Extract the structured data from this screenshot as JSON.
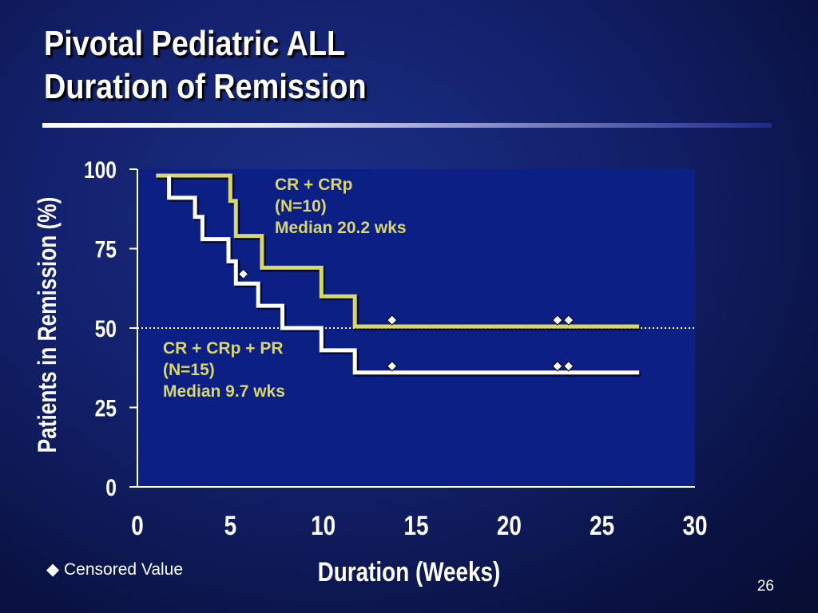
{
  "slide": {
    "title_line1": "Pivotal Pediatric ALL",
    "title_line2": "Duration of Remission",
    "legend_marker": "◆",
    "legend_label": "Censored Value",
    "page_number": "26"
  },
  "colors": {
    "plot_bg": "#0b1f84",
    "series1": "#d9d66a",
    "series2": "#ffffff",
    "text": "#ffffff",
    "annotation": "#d9d66a",
    "reference_line": "#ffffff"
  },
  "chart_data": {
    "type": "line",
    "subtype": "kaplan-meier step",
    "xlabel": "Duration (Weeks)",
    "ylabel": "Patients in Remission (%)",
    "xlim": [
      0,
      30
    ],
    "ylim": [
      0,
      100
    ],
    "x_ticks": [
      "0",
      "5",
      "10",
      "15",
      "20",
      "25",
      "30"
    ],
    "y_ticks": [
      "0",
      "25",
      "50",
      "75",
      "100"
    ],
    "grid": false,
    "reference_line_y": 50,
    "series": [
      {
        "annotation": [
          "CR + CRp",
          "(N=10)",
          "Median 20.2 wks"
        ],
        "color": "#d9d66a",
        "steps": [
          [
            1,
            98
          ],
          [
            5,
            98
          ],
          [
            5,
            90
          ],
          [
            5.3,
            90
          ],
          [
            5.3,
            79
          ],
          [
            6.7,
            79
          ],
          [
            6.7,
            69
          ],
          [
            9.9,
            69
          ],
          [
            9.9,
            60
          ],
          [
            11.7,
            60
          ],
          [
            11.7,
            50.5
          ],
          [
            27,
            50.5
          ]
        ],
        "censored": [
          [
            13.7,
            52.5
          ],
          [
            22.6,
            52.5
          ],
          [
            23.2,
            52.5
          ]
        ]
      },
      {
        "annotation": [
          "CR + CRp + PR",
          "(N=15)",
          "Median 9.7 wks"
        ],
        "color": "#ffffff",
        "steps": [
          [
            1.7,
            98
          ],
          [
            1.7,
            91
          ],
          [
            3.1,
            91
          ],
          [
            3.1,
            85
          ],
          [
            3.5,
            85
          ],
          [
            3.5,
            78
          ],
          [
            4.9,
            78
          ],
          [
            4.9,
            71
          ],
          [
            5.3,
            71
          ],
          [
            5.3,
            64
          ],
          [
            6.5,
            64
          ],
          [
            6.5,
            57
          ],
          [
            7.8,
            57
          ],
          [
            7.8,
            50
          ],
          [
            9.9,
            50
          ],
          [
            9.9,
            43
          ],
          [
            11.7,
            43
          ],
          [
            11.7,
            36
          ],
          [
            27,
            36
          ]
        ],
        "censored": [
          [
            13.7,
            38
          ],
          [
            22.6,
            38
          ],
          [
            23.2,
            38
          ],
          [
            5.7,
            67
          ]
        ]
      }
    ]
  }
}
